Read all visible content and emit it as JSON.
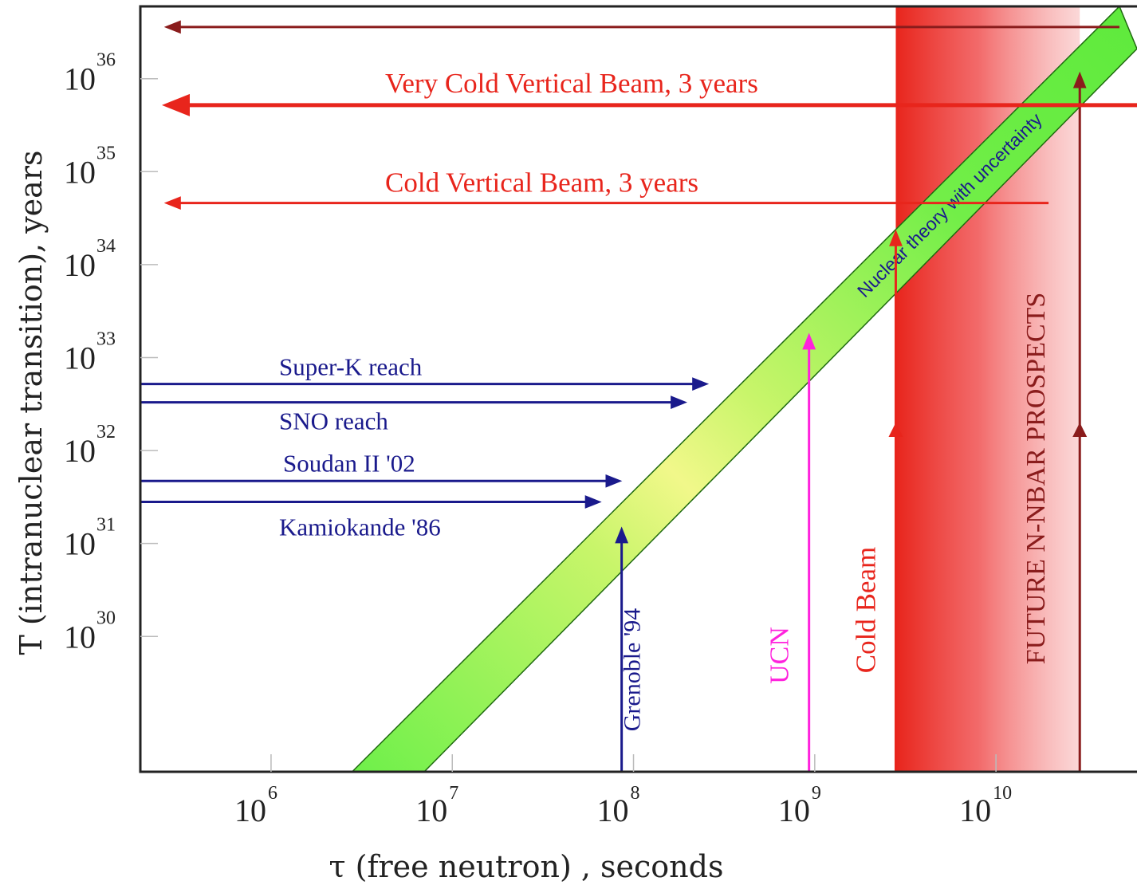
{
  "chart_data": {
    "type": "line",
    "xlabel": "τ (free neutron) , seconds",
    "ylabel": "T (intranuclear transition),  years",
    "x_scale": "log",
    "y_scale": "log",
    "xlim": [
      190000,
      60000000000
    ],
    "ylim": [
      3.5e+28,
      6e+36
    ],
    "x_ticks": [
      {
        "value": 1000000,
        "base": "10",
        "exp": "6"
      },
      {
        "value": 10000000,
        "base": "10",
        "exp": "7"
      },
      {
        "value": 100000000,
        "base": "10",
        "exp": "8"
      },
      {
        "value": 1000000000,
        "base": "10",
        "exp": "9"
      },
      {
        "value": 10000000000,
        "base": "10",
        "exp": "10"
      }
    ],
    "y_ticks": [
      {
        "value": 1e+30,
        "base": "10",
        "exp": "30"
      },
      {
        "value": 1e+31,
        "base": "10",
        "exp": "31"
      },
      {
        "value": 1e+32,
        "base": "10",
        "exp": "32"
      },
      {
        "value": 1e+33,
        "base": "10",
        "exp": "33"
      },
      {
        "value": 1e+34,
        "base": "10",
        "exp": "34"
      },
      {
        "value": 1e+35,
        "base": "10",
        "exp": "35"
      },
      {
        "value": 1e+36,
        "base": "10",
        "exp": "36"
      }
    ],
    "theory_band": {
      "label": "Nuclear theory with uncertainty",
      "upper": [
        [
          2800000,
          3.5e+28
        ],
        [
          48000000000,
          6e+36
        ]
      ],
      "lower": [
        [
          7000000,
          3.5e+28
        ],
        [
          60000000000,
          2.1e+36
        ]
      ]
    },
    "horizontal_limits": [
      {
        "label": "Super-K reach",
        "T": 5.2e+32,
        "tau_end": 250000000,
        "color": "#1a1a8c"
      },
      {
        "label": "SNO reach",
        "T": 3.3e+32,
        "tau_end": 190000000,
        "color": "#1a1a8c"
      },
      {
        "label": "Soudan II '02",
        "T": 4.7e+31,
        "tau_end": 83000000,
        "color": "#1a1a8c"
      },
      {
        "label": "Kamiokande '86",
        "T": 2.8e+31,
        "tau_end": 64000000,
        "color": "#1a1a8c"
      },
      {
        "label": "Cold Vertical Beam, 3 years",
        "T": 4.6e+34,
        "tau_end": 19500000000,
        "color": "#e8251c"
      },
      {
        "label": "Very Cold Vertical Beam, 3 years",
        "T": 5.2e+35,
        "tau_end": 62000000000,
        "color": "#e8251c"
      },
      {
        "label": "",
        "T": 3.6e+36,
        "tau_end": 48000000000,
        "color": "#8a1c1c"
      }
    ],
    "vertical_limits": [
      {
        "label": "Grenoble '94",
        "tau": 86000000,
        "T_top": 1.4e+31,
        "color": "#1a1a8c"
      },
      {
        "label": "UCN",
        "tau": 930000000,
        "T_top": 1.7e+33,
        "color": "#ff22dd"
      },
      {
        "label": "Cold Beam",
        "tau": 2800000000,
        "T_top": 2.2e+34,
        "color": "#e8251c"
      },
      {
        "label": "FUTURE  N-NBAR PROSPECTS",
        "tau": 29000000000,
        "T_top": 1.1e+36,
        "color": "#8a1c1c"
      }
    ],
    "shaded_region": {
      "tau_from": 2800000000,
      "tau_to": 29000000000,
      "color": "#e8251c"
    }
  }
}
